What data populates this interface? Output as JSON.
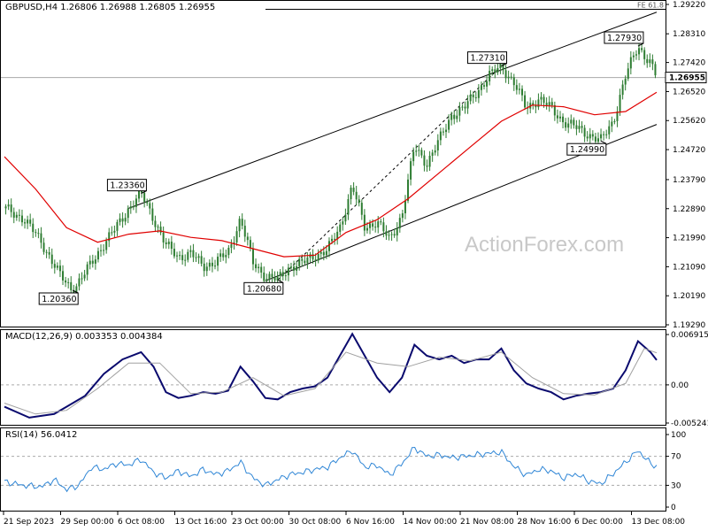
{
  "header": {
    "symbol": "GBPUSD,H4",
    "ohlc": "1.26806 1.26988 1.26805 1.26955"
  },
  "watermark": "ActionForex.com",
  "colors": {
    "candle": "#2e7d32",
    "ma": "#e00000",
    "macd": "#0a0a6e",
    "signal": "#a0a0a0",
    "rsi": "#2f86d6",
    "grid": "#aaaaaa"
  },
  "chart_data": [
    {
      "type": "candlestick",
      "title": "GBPUSD,H4",
      "x_labels": [
        "21 Sep 2023",
        "29 Sep 00:00",
        "6 Oct 08:00",
        "13 Oct 16:00",
        "23 Oct 00:00",
        "30 Oct 08:00",
        "6 Nov 16:00",
        "14 Nov 00:00",
        "21 Nov 08:00",
        "28 Nov 16:00",
        "6 Dec 00:00",
        "13 Dec 08:00"
      ],
      "y_ticks": [
        "1.29220",
        "1.28310",
        "1.27420",
        "1.26520",
        "1.25620",
        "1.24720",
        "1.23790",
        "1.22890",
        "1.21990",
        "1.21090",
        "1.20190",
        "1.19290"
      ],
      "ylim": [
        1.1929,
        1.2922
      ],
      "current_price": "1.26955",
      "fib_label": "FE 61.8",
      "fib_level": 1.2907,
      "price_path": [
        [
          0,
          1.229
        ],
        [
          3,
          1.226
        ],
        [
          6,
          1.2185
        ],
        [
          9,
          1.208
        ],
        [
          11,
          1.2036
        ],
        [
          13,
          1.209
        ],
        [
          16,
          1.218
        ],
        [
          18,
          1.223
        ],
        [
          20,
          1.229
        ],
        [
          22,
          1.2336
        ],
        [
          24,
          1.226
        ],
        [
          26,
          1.2175
        ],
        [
          28,
          1.214
        ],
        [
          30,
          1.215
        ],
        [
          32,
          1.211
        ],
        [
          34,
          1.2125
        ],
        [
          36,
          1.215
        ],
        [
          38,
          1.226
        ],
        [
          40,
          1.212
        ],
        [
          42,
          1.208
        ],
        [
          44,
          1.2068
        ],
        [
          46,
          1.211
        ],
        [
          48,
          1.212
        ],
        [
          50,
          1.2145
        ],
        [
          52,
          1.216
        ],
        [
          54,
          1.223
        ],
        [
          56,
          1.236
        ],
        [
          58,
          1.223
        ],
        [
          60,
          1.225
        ],
        [
          62,
          1.219
        ],
        [
          64,
          1.227
        ],
        [
          66,
          1.248
        ],
        [
          68,
          1.243
        ],
        [
          70,
          1.25
        ],
        [
          72,
          1.258
        ],
        [
          74,
          1.26
        ],
        [
          76,
          1.265
        ],
        [
          78,
          1.27
        ],
        [
          80,
          1.2731
        ],
        [
          82,
          1.268
        ],
        [
          84,
          1.26
        ],
        [
          86,
          1.263
        ],
        [
          88,
          1.26
        ],
        [
          90,
          1.256
        ],
        [
          92,
          1.254
        ],
        [
          94,
          1.252
        ],
        [
          96,
          1.2499
        ],
        [
          98,
          1.256
        ],
        [
          100,
          1.27
        ],
        [
          102,
          1.2793
        ],
        [
          104,
          1.274
        ],
        [
          105,
          1.2695
        ]
      ],
      "ma_path": [
        [
          0,
          1.245
        ],
        [
          5,
          1.235
        ],
        [
          10,
          1.223
        ],
        [
          15,
          1.2185
        ],
        [
          20,
          1.221
        ],
        [
          25,
          1.222
        ],
        [
          30,
          1.22
        ],
        [
          35,
          1.219
        ],
        [
          40,
          1.2165
        ],
        [
          45,
          1.214
        ],
        [
          50,
          1.2145
        ],
        [
          55,
          1.2215
        ],
        [
          60,
          1.2255
        ],
        [
          65,
          1.232
        ],
        [
          70,
          1.24
        ],
        [
          75,
          1.248
        ],
        [
          80,
          1.256
        ],
        [
          85,
          1.261
        ],
        [
          90,
          1.2605
        ],
        [
          95,
          1.258
        ],
        [
          100,
          1.259
        ],
        [
          105,
          1.265
        ]
      ],
      "channel_upper": [
        [
          20,
          1.229
        ],
        [
          105,
          1.2898
        ]
      ],
      "channel_lower": [
        [
          42,
          1.2065
        ],
        [
          105,
          1.255
        ]
      ],
      "dashed_line": [
        [
          44,
          1.2068
        ],
        [
          80,
          1.2731
        ]
      ],
      "annotations": [
        {
          "text": "1.20360",
          "x": 11,
          "y": 1.2036,
          "pos": "below"
        },
        {
          "text": "1.23360",
          "x": 22,
          "y": 1.2336,
          "pos": "above"
        },
        {
          "text": "1.20680",
          "x": 44,
          "y": 1.2068,
          "pos": "below"
        },
        {
          "text": "1.27310",
          "x": 80,
          "y": 1.2731,
          "pos": "above"
        },
        {
          "text": "1.24990",
          "x": 96,
          "y": 1.2499,
          "pos": "below"
        },
        {
          "text": "1.27930",
          "x": 102,
          "y": 1.2793,
          "pos": "above"
        }
      ]
    },
    {
      "type": "line",
      "title": "MACD(12,26,9) 0.003353 0.004384",
      "y_ticks": [
        "0.006915",
        "0.00",
        "-0.005241"
      ],
      "ylim": [
        -0.005241,
        0.006915
      ],
      "series": [
        {
          "values": [
            [
              0,
              -0.003
            ],
            [
              4,
              -0.0045
            ],
            [
              8,
              -0.004
            ],
            [
              10,
              -0.003
            ],
            [
              13,
              -0.0015
            ],
            [
              16,
              0.0015
            ],
            [
              19,
              0.0035
            ],
            [
              22,
              0.0045
            ],
            [
              24,
              0.0025
            ],
            [
              26,
              -0.001
            ],
            [
              28,
              -0.0018
            ],
            [
              30,
              -0.0015
            ],
            [
              32,
              -0.001
            ],
            [
              34,
              -0.0012
            ],
            [
              36,
              -0.0008
            ],
            [
              38,
              0.0025
            ],
            [
              40,
              0.0005
            ],
            [
              42,
              -0.0018
            ],
            [
              44,
              -0.002
            ],
            [
              46,
              -0.001
            ],
            [
              48,
              -0.0005
            ],
            [
              50,
              -0.0002
            ],
            [
              52,
              0.001
            ],
            [
              54,
              0.004
            ],
            [
              56,
              0.007
            ],
            [
              58,
              0.004
            ],
            [
              60,
              0.001
            ],
            [
              62,
              -0.001
            ],
            [
              64,
              0.001
            ],
            [
              66,
              0.0055
            ],
            [
              68,
              0.004
            ],
            [
              70,
              0.0035
            ],
            [
              72,
              0.004
            ],
            [
              74,
              0.003
            ],
            [
              76,
              0.0035
            ],
            [
              78,
              0.0035
            ],
            [
              80,
              0.005
            ],
            [
              82,
              0.002
            ],
            [
              84,
              0.0002
            ],
            [
              86,
              -0.0005
            ],
            [
              88,
              -0.001
            ],
            [
              90,
              -0.002
            ],
            [
              92,
              -0.0015
            ],
            [
              94,
              -0.0012
            ],
            [
              96,
              -0.001
            ],
            [
              98,
              -0.0005
            ],
            [
              100,
              0.002
            ],
            [
              102,
              0.006
            ],
            [
              104,
              0.0045
            ],
            [
              105,
              0.0034
            ]
          ]
        },
        {
          "values": [
            [
              0,
              -0.0025
            ],
            [
              5,
              -0.004
            ],
            [
              10,
              -0.0035
            ],
            [
              15,
              -0.0005
            ],
            [
              20,
              0.003
            ],
            [
              25,
              0.003
            ],
            [
              30,
              -0.0012
            ],
            [
              35,
              -0.001
            ],
            [
              40,
              0.001
            ],
            [
              45,
              -0.0015
            ],
            [
              50,
              -0.0005
            ],
            [
              55,
              0.0045
            ],
            [
              60,
              0.003
            ],
            [
              65,
              0.0025
            ],
            [
              70,
              0.0038
            ],
            [
              75,
              0.0033
            ],
            [
              80,
              0.0045
            ],
            [
              85,
              0.001
            ],
            [
              90,
              -0.0012
            ],
            [
              95,
              -0.0014
            ],
            [
              100,
              0.0002
            ],
            [
              103,
              0.005
            ],
            [
              105,
              0.0044
            ]
          ]
        }
      ]
    },
    {
      "type": "line",
      "title": "RSI(14) 56.0412",
      "y_ticks": [
        "100",
        "70",
        "30",
        "0"
      ],
      "ylim": [
        0,
        100
      ],
      "levels": [
        70,
        30
      ],
      "series": [
        {
          "values": [
            [
              0,
              35
            ],
            [
              3,
              30
            ],
            [
              6,
              28
            ],
            [
              8,
              38
            ],
            [
              10,
              24
            ],
            [
              12,
              30
            ],
            [
              14,
              55
            ],
            [
              16,
              52
            ],
            [
              18,
              60
            ],
            [
              20,
              58
            ],
            [
              22,
              66
            ],
            [
              24,
              48
            ],
            [
              26,
              40
            ],
            [
              28,
              50
            ],
            [
              30,
              42
            ],
            [
              32,
              52
            ],
            [
              34,
              45
            ],
            [
              36,
              50
            ],
            [
              38,
              62
            ],
            [
              40,
              40
            ],
            [
              42,
              30
            ],
            [
              44,
              38
            ],
            [
              46,
              45
            ],
            [
              48,
              48
            ],
            [
              50,
              52
            ],
            [
              52,
              55
            ],
            [
              54,
              68
            ],
            [
              56,
              78
            ],
            [
              58,
              55
            ],
            [
              60,
              58
            ],
            [
              62,
              44
            ],
            [
              64,
              60
            ],
            [
              66,
              82
            ],
            [
              68,
              70
            ],
            [
              70,
              72
            ],
            [
              72,
              68
            ],
            [
              74,
              70
            ],
            [
              76,
              72
            ],
            [
              78,
              74
            ],
            [
              80,
              76
            ],
            [
              82,
              56
            ],
            [
              84,
              44
            ],
            [
              86,
              52
            ],
            [
              88,
              50
            ],
            [
              90,
              40
            ],
            [
              92,
              46
            ],
            [
              94,
              36
            ],
            [
              96,
              32
            ],
            [
              98,
              46
            ],
            [
              100,
              62
            ],
            [
              102,
              78
            ],
            [
              104,
              60
            ],
            [
              105,
              56
            ]
          ]
        }
      ]
    }
  ]
}
